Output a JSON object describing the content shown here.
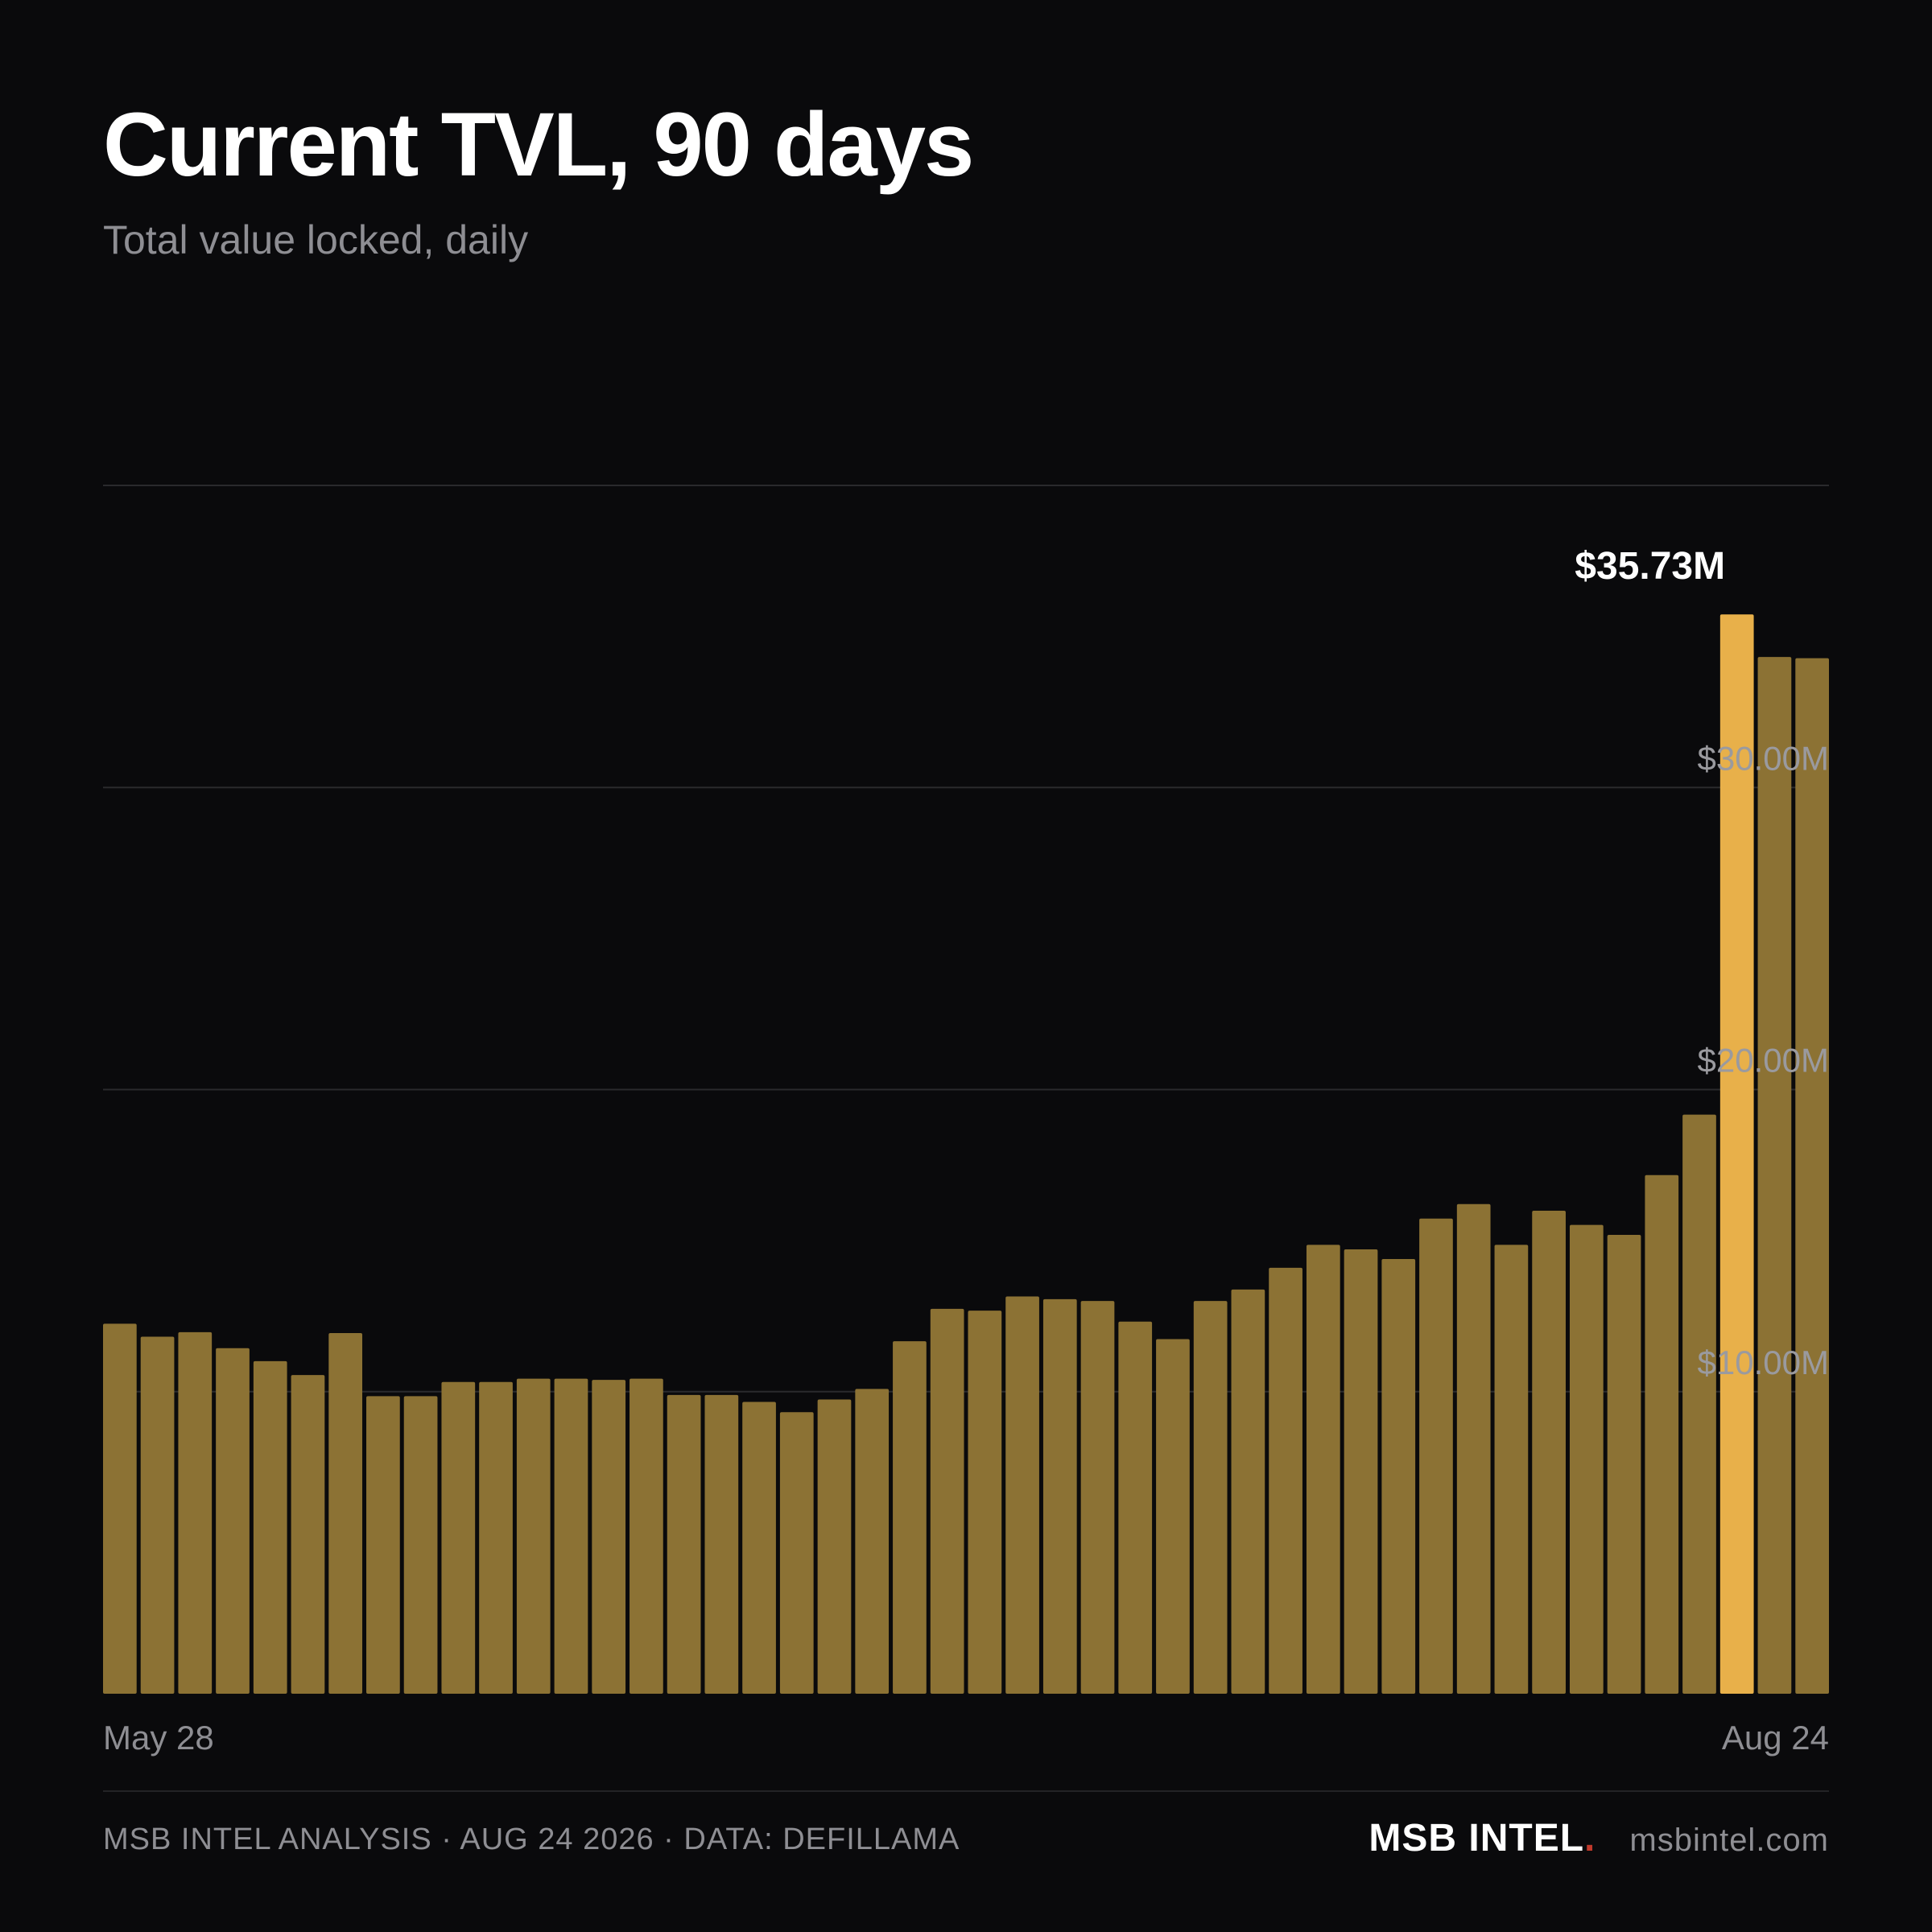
{
  "header": {
    "title": "Current TVL, 90 days",
    "subtitle": "Total value locked, daily"
  },
  "chart_data": {
    "type": "bar",
    "title": "Current TVL, 90 days",
    "subtitle": "Total value locked, daily",
    "xlabel": "",
    "ylabel": "",
    "x_start_label": "May 28",
    "x_end_label": "Aug 24",
    "ylim": [
      0,
      40
    ],
    "y_ticks": [
      10,
      20,
      30
    ],
    "y_tick_labels": [
      "$10.00M",
      "$20.00M",
      "$30.00M"
    ],
    "grid": true,
    "unit": "USD millions",
    "values": [
      12.25,
      11.82,
      11.97,
      11.44,
      11.01,
      10.55,
      11.94,
      9.85,
      9.85,
      10.32,
      10.32,
      10.43,
      10.43,
      10.39,
      10.43,
      9.89,
      9.89,
      9.66,
      9.32,
      9.74,
      10.09,
      11.67,
      12.74,
      12.68,
      13.15,
      13.06,
      13.0,
      12.32,
      11.74,
      13.0,
      13.38,
      14.1,
      14.86,
      14.71,
      14.39,
      15.73,
      16.21,
      14.86,
      15.99,
      15.52,
      15.19,
      17.17,
      19.17,
      35.73,
      34.32,
      34.28
    ],
    "highlight": {
      "label": "$35.73M",
      "value": 35.73
    },
    "colors": {
      "bar": "#8c7234",
      "highlight": "#e8b04a",
      "gridline": "#2a2a2d",
      "tick_label": "#8e8e93",
      "background": "#0a0a0c"
    }
  },
  "footer": {
    "source": "MSB INTEL ANALYSIS · AUG 24 2026 · DATA: DEFILLAMA",
    "brand": "MSB INTEL",
    "brand_dot": ".",
    "site": "msbintel.com"
  }
}
